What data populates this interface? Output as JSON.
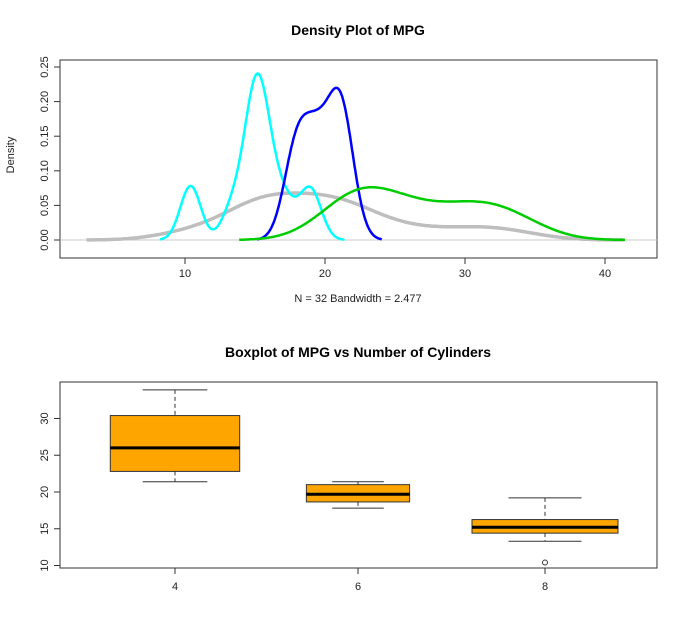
{
  "chart_data": [
    {
      "type": "line",
      "title": "Density Plot of MPG",
      "xlabel": "N = 32   Bandwidth = 2.477",
      "ylabel": "Density",
      "xlim": [
        1.5,
        43
      ],
      "ylim": [
        0,
        0.25
      ],
      "x_ticks": [
        "10",
        "20",
        "30",
        "40"
      ],
      "y_ticks": [
        "0.00",
        "0.05",
        "0.10",
        "0.15",
        "0.20",
        "0.25"
      ],
      "grid": false,
      "series": [
        {
          "color": "#bebebe",
          "bandwidth": 2.477,
          "values": [
            21.0,
            21.0,
            22.8,
            21.4,
            18.7,
            18.1,
            14.3,
            24.4,
            22.8,
            19.2,
            17.8,
            16.4,
            17.3,
            15.2,
            10.4,
            10.4,
            14.7,
            32.4,
            30.4,
            33.9,
            21.5,
            15.5,
            15.2,
            13.3,
            19.2,
            27.3,
            26.0,
            30.4,
            15.8,
            19.7,
            15.0,
            21.4
          ]
        },
        {
          "color": "#00ffff",
          "bandwidth": 0.73,
          "values": [
            18.7,
            14.3,
            16.4,
            17.3,
            15.2,
            10.4,
            10.4,
            14.7,
            15.5,
            15.2,
            13.3,
            19.2,
            15.8,
            15.0
          ]
        },
        {
          "color": "#0000ff",
          "bandwidth": 0.885,
          "values": [
            21.0,
            21.0,
            21.4,
            18.1,
            19.2,
            17.8,
            19.7
          ]
        },
        {
          "color": "#00cd00",
          "bandwidth": 2.51,
          "values": [
            22.8,
            24.4,
            22.8,
            32.4,
            30.4,
            33.9,
            21.5,
            27.3,
            26.0,
            30.4,
            21.4
          ]
        }
      ]
    },
    {
      "type": "box",
      "title": "Boxplot of MPG vs Number of Cylinders",
      "xlabel": "",
      "ylabel": "",
      "ylim": [
        9.5,
        34.5
      ],
      "y_ticks": [
        "10",
        "15",
        "20",
        "25",
        "30"
      ],
      "categories": [
        "4",
        "6",
        "8"
      ],
      "fill": "#ffa500",
      "boxes": [
        {
          "n": 11,
          "min": 21.4,
          "q1": 22.8,
          "median": 26.0,
          "q3": 30.4,
          "max": 33.9,
          "outliers": []
        },
        {
          "n": 7,
          "min": 17.8,
          "q1": 18.65,
          "median": 19.7,
          "q3": 21.0,
          "max": 21.4,
          "outliers": []
        },
        {
          "n": 14,
          "min": 13.3,
          "q1": 14.4,
          "median": 15.2,
          "q3": 16.25,
          "max": 19.2,
          "outliers": [
            10.4
          ]
        }
      ]
    }
  ]
}
